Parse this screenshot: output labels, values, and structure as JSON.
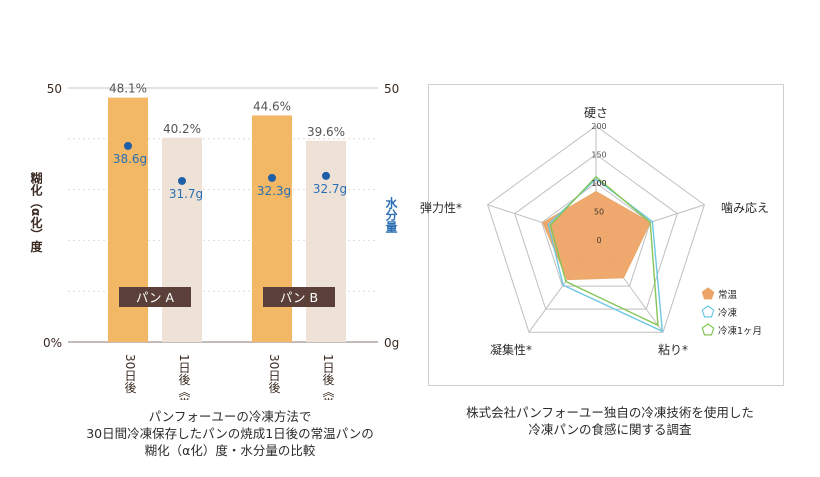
{
  "chart_data": [
    {
      "type": "bar",
      "ylabel_left": "糊化（α化）度",
      "ylabel_right": "水分量",
      "left_ticks": [
        "50",
        "0%"
      ],
      "right_ticks": [
        "50",
        "0g"
      ],
      "ylim": [
        0,
        50
      ],
      "groups": [
        {
          "name": "パン A",
          "bars": [
            {
              "category": "30日後《冷凍》",
              "value": 48.1,
              "value_label": "48.1%",
              "moisture": 38.6,
              "moisture_label": "38.6g",
              "color": "#f2b865"
            },
            {
              "category": "1日後《常温》",
              "value": 40.2,
              "value_label": "40.2%",
              "moisture": 31.7,
              "moisture_label": "31.7g",
              "color": "#eee1d6"
            }
          ]
        },
        {
          "name": "パン B",
          "bars": [
            {
              "category": "30日後《冷凍》",
              "value": 44.6,
              "value_label": "44.6%",
              "moisture": 32.3,
              "moisture_label": "32.3g",
              "color": "#f2b865"
            },
            {
              "category": "1日後《常温》",
              "value": 39.6,
              "value_label": "39.6%",
              "moisture": 32.7,
              "moisture_label": "32.7g",
              "color": "#eee1d6"
            }
          ]
        }
      ],
      "colors": {
        "axis_text": "#3a2a22",
        "value_text": "#555555",
        "moisture_dot": "#1f5fa8",
        "moisture_text": "#2a6fb4",
        "group_label_bg": "#5a4038",
        "right_label": "#2a6fb4"
      }
    },
    {
      "type": "radar",
      "axes": [
        "硬さ",
        "噛み応え",
        "粘り*",
        "凝集性*",
        "弾力性*"
      ],
      "rlim": [
        0,
        200
      ],
      "ticks": [
        0,
        50,
        100,
        150,
        200
      ],
      "series": [
        {
          "name": "常温",
          "values": [
            85,
            100,
            82,
            86,
            98
          ],
          "color": "#e8a664",
          "fill": "#eea466",
          "style": "filled"
        },
        {
          "name": "冷凍",
          "values": [
            107,
            104,
            198,
            98,
            88
          ],
          "color": "#6fc7e3",
          "style": "line"
        },
        {
          "name": "冷凍1ヶ月",
          "values": [
            111,
            100,
            185,
            90,
            84
          ],
          "color": "#86c556",
          "style": "line"
        }
      ]
    }
  ],
  "captions": {
    "left": [
      "パンフォーユーの冷凍方法で",
      "30日間冷凍保存したパンの焼成1日後の常温パンの",
      "糊化（α化）度・水分量の比較"
    ],
    "right": [
      "株式会社パンフォーユー独自の冷凍技術を使用した",
      "冷凍パンの食感に関する調査"
    ]
  }
}
